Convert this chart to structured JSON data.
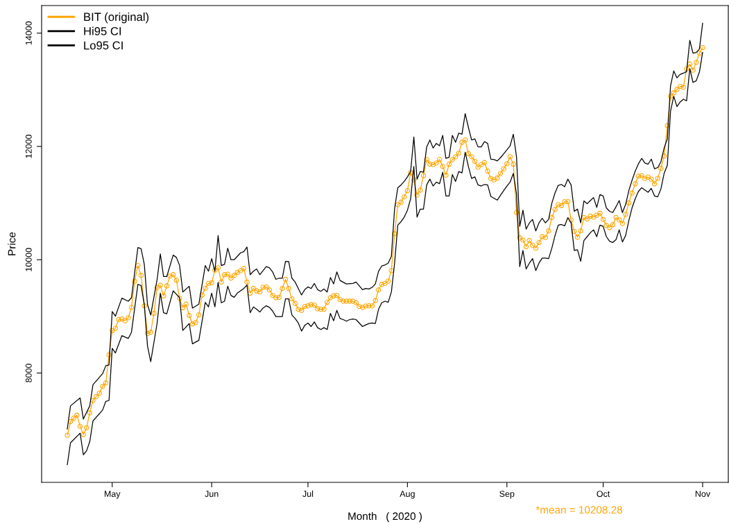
{
  "chart_data": {
    "type": "line",
    "xlabel": "Month   ( 2020 )",
    "ylabel": "Price",
    "annotations": [
      "*mean = 10208.28"
    ],
    "xlim": [
      "2020-04-09",
      "2020-11-09"
    ],
    "ylim": [
      6070,
      14487
    ],
    "xticks": [
      {
        "value": "2020-05-01",
        "label": "May"
      },
      {
        "value": "2020-06-01",
        "label": "Jun"
      },
      {
        "value": "2020-07-01",
        "label": "Jul"
      },
      {
        "value": "2020-08-01",
        "label": "Aug"
      },
      {
        "value": "2020-09-01",
        "label": "Sep"
      },
      {
        "value": "2020-10-01",
        "label": "Oct"
      },
      {
        "value": "2020-11-01",
        "label": "Nov"
      }
    ],
    "yticks": [
      8000,
      10000,
      12000,
      14000
    ],
    "grid": false,
    "legend": "top left",
    "x": [
      "2020-04-17",
      "2020-04-18",
      "2020-04-19",
      "2020-04-20",
      "2020-04-21",
      "2020-04-22",
      "2020-04-23",
      "2020-04-24",
      "2020-04-25",
      "2020-04-26",
      "2020-04-27",
      "2020-04-28",
      "2020-04-29",
      "2020-04-30",
      "2020-05-01",
      "2020-05-02",
      "2020-05-03",
      "2020-05-04",
      "2020-05-05",
      "2020-05-06",
      "2020-05-07",
      "2020-05-08",
      "2020-05-09",
      "2020-05-10",
      "2020-05-11",
      "2020-05-12",
      "2020-05-13",
      "2020-05-14",
      "2020-05-15",
      "2020-05-16",
      "2020-05-17",
      "2020-05-18",
      "2020-05-19",
      "2020-05-20",
      "2020-05-21",
      "2020-05-22",
      "2020-05-23",
      "2020-05-24",
      "2020-05-25",
      "2020-05-26",
      "2020-05-27",
      "2020-05-28",
      "2020-05-29",
      "2020-05-30",
      "2020-05-31",
      "2020-06-01",
      "2020-06-02",
      "2020-06-03",
      "2020-06-04",
      "2020-06-05",
      "2020-06-06",
      "2020-06-07",
      "2020-06-08",
      "2020-06-09",
      "2020-06-10",
      "2020-06-11",
      "2020-06-12",
      "2020-06-13",
      "2020-06-14",
      "2020-06-15",
      "2020-06-16",
      "2020-06-17",
      "2020-06-18",
      "2020-06-19",
      "2020-06-20",
      "2020-06-21",
      "2020-06-22",
      "2020-06-23",
      "2020-06-24",
      "2020-06-25",
      "2020-06-26",
      "2020-06-27",
      "2020-06-28",
      "2020-06-29",
      "2020-06-30",
      "2020-07-01",
      "2020-07-02",
      "2020-07-03",
      "2020-07-04",
      "2020-07-05",
      "2020-07-06",
      "2020-07-07",
      "2020-07-08",
      "2020-07-09",
      "2020-07-10",
      "2020-07-11",
      "2020-07-12",
      "2020-07-13",
      "2020-07-14",
      "2020-07-15",
      "2020-07-16",
      "2020-07-17",
      "2020-07-18",
      "2020-07-19",
      "2020-07-20",
      "2020-07-21",
      "2020-07-22",
      "2020-07-23",
      "2020-07-24",
      "2020-07-25",
      "2020-07-26",
      "2020-07-27",
      "2020-07-28",
      "2020-07-29",
      "2020-07-30",
      "2020-07-31",
      "2020-08-01",
      "2020-08-02",
      "2020-08-03",
      "2020-08-04",
      "2020-08-05",
      "2020-08-06",
      "2020-08-07",
      "2020-08-08",
      "2020-08-09",
      "2020-08-10",
      "2020-08-11",
      "2020-08-12",
      "2020-08-13",
      "2020-08-14",
      "2020-08-15",
      "2020-08-16",
      "2020-08-17",
      "2020-08-18",
      "2020-08-19",
      "2020-08-20",
      "2020-08-21",
      "2020-08-22",
      "2020-08-23",
      "2020-08-24",
      "2020-08-25",
      "2020-08-26",
      "2020-08-27",
      "2020-08-28",
      "2020-08-29",
      "2020-08-30",
      "2020-08-31",
      "2020-09-01",
      "2020-09-02",
      "2020-09-03",
      "2020-09-04",
      "2020-09-05",
      "2020-09-06",
      "2020-09-07",
      "2020-09-08",
      "2020-09-09",
      "2020-09-10",
      "2020-09-11",
      "2020-09-12",
      "2020-09-13",
      "2020-09-14",
      "2020-09-15",
      "2020-09-16",
      "2020-09-17",
      "2020-09-18",
      "2020-09-19",
      "2020-09-20",
      "2020-09-21",
      "2020-09-22",
      "2020-09-23",
      "2020-09-24",
      "2020-09-25",
      "2020-09-26",
      "2020-09-27",
      "2020-09-28",
      "2020-09-29",
      "2020-09-30",
      "2020-10-01",
      "2020-10-02",
      "2020-10-03",
      "2020-10-04",
      "2020-10-05",
      "2020-10-06",
      "2020-10-07",
      "2020-10-08",
      "2020-10-09",
      "2020-10-10",
      "2020-10-11",
      "2020-10-12",
      "2020-10-13",
      "2020-10-14",
      "2020-10-15",
      "2020-10-16",
      "2020-10-17",
      "2020-10-18",
      "2020-10-19",
      "2020-10-20",
      "2020-10-21",
      "2020-10-22",
      "2020-10-23",
      "2020-10-24",
      "2020-10-25",
      "2020-10-26",
      "2020-10-27",
      "2020-10-28",
      "2020-10-29",
      "2020-10-30",
      "2020-10-31",
      "2020-11-01"
    ],
    "series": [
      {
        "name": "BIT (original)",
        "color": "#ffa500",
        "marker": "circle",
        "values": [
          6902,
          7142,
          7203,
          7256,
          7061,
          6915,
          7033,
          7297,
          7516,
          7585,
          7646,
          7764,
          7825,
          8321,
          8748,
          8789,
          8943,
          8955,
          8923,
          8976,
          9159,
          9622,
          9898,
          9724,
          9187,
          8699,
          8720,
          9053,
          9512,
          9549,
          9362,
          9537,
          9711,
          9736,
          9638,
          9321,
          9154,
          9215,
          9016,
          8866,
          8890,
          9028,
          9378,
          9496,
          9581,
          9593,
          9817,
          9858,
          9606,
          9736,
          9744,
          9675,
          9724,
          9776,
          9809,
          9846,
          9606,
          9411,
          9492,
          9451,
          9431,
          9512,
          9520,
          9467,
          9370,
          9329,
          9337,
          9492,
          9654,
          9492,
          9309,
          9228,
          9126,
          9106,
          9175,
          9187,
          9207,
          9199,
          9134,
          9126,
          9126,
          9248,
          9329,
          9362,
          9370,
          9297,
          9268,
          9268,
          9268,
          9268,
          9240,
          9175,
          9159,
          9183,
          9187,
          9187,
          9280,
          9467,
          9565,
          9581,
          9622,
          9809,
          10459,
          10972,
          11016,
          11110,
          11220,
          11537,
          11411,
          11142,
          11228,
          11484,
          11768,
          11687,
          11679,
          11707,
          11768,
          11646,
          11492,
          11687,
          11768,
          11817,
          11882,
          12073,
          12114,
          11874,
          11817,
          11736,
          11634,
          11679,
          11715,
          11565,
          11435,
          11411,
          11443,
          11524,
          11606,
          11695,
          11817,
          11687,
          10833,
          10386,
          10346,
          10232,
          10337,
          10256,
          10203,
          10305,
          10407,
          10394,
          10508,
          10744,
          10890,
          10972,
          10955,
          11024,
          11024,
          10703,
          10500,
          10398,
          10508,
          10744,
          10720,
          10768,
          10752,
          10785,
          10821,
          10711,
          10606,
          10569,
          10618,
          10744,
          10703,
          10642,
          10801,
          11004,
          11179,
          11341,
          11476,
          11484,
          11435,
          11459,
          11423,
          11341,
          11435,
          11614,
          11829,
          12370,
          12886,
          12947,
          13008,
          13061,
          13045,
          13370,
          13455,
          13346,
          13484,
          13646,
          13744
        ]
      },
      {
        "name": "Hi95 CI",
        "color": "#000000",
        "x": [
          "2020-04-17",
          "2020-04-18",
          "2020-04-21",
          "2020-04-22",
          "2020-04-24",
          "2020-04-25",
          "2020-04-28",
          "2020-04-29",
          "2020-04-30",
          "2020-05-01",
          "2020-05-02",
          "2020-05-04",
          "2020-05-06",
          "2020-05-07",
          "2020-05-09",
          "2020-05-10",
          "2020-05-11",
          "2020-05-12",
          "2020-05-13",
          "2020-05-15",
          "2020-05-16",
          "2020-05-17",
          "2020-05-18",
          "2020-05-20",
          "2020-05-21",
          "2020-05-22",
          "2020-05-23",
          "2020-05-25",
          "2020-05-26",
          "2020-05-28",
          "2020-05-30",
          "2020-05-31",
          "2020-06-01",
          "2020-06-02",
          "2020-06-03",
          "2020-06-04",
          "2020-06-05",
          "2020-06-06",
          "2020-06-07",
          "2020-06-08",
          "2020-06-10",
          "2020-06-11",
          "2020-06-12",
          "2020-06-13",
          "2020-06-14",
          "2020-06-15",
          "2020-06-16",
          "2020-06-18",
          "2020-06-19",
          "2020-06-20",
          "2020-06-21",
          "2020-06-22",
          "2020-06-23",
          "2020-06-24",
          "2020-06-25",
          "2020-06-26",
          "2020-06-27",
          "2020-06-28",
          "2020-06-29",
          "2020-06-30",
          "2020-07-01",
          "2020-07-02",
          "2020-07-03",
          "2020-07-04",
          "2020-07-05",
          "2020-07-06",
          "2020-07-07",
          "2020-07-08",
          "2020-07-09",
          "2020-07-10",
          "2020-07-11",
          "2020-07-13",
          "2020-07-15",
          "2020-07-16",
          "2020-07-18",
          "2020-07-19",
          "2020-07-20",
          "2020-07-21",
          "2020-07-22",
          "2020-07-23",
          "2020-07-24",
          "2020-07-25",
          "2020-07-26",
          "2020-07-27",
          "2020-07-28",
          "2020-07-29",
          "2020-07-30",
          "2020-07-31",
          "2020-08-01",
          "2020-08-02",
          "2020-08-03",
          "2020-08-04",
          "2020-08-05",
          "2020-08-06",
          "2020-08-07",
          "2020-08-08",
          "2020-08-09",
          "2020-08-10",
          "2020-08-11",
          "2020-08-12",
          "2020-08-13",
          "2020-08-14",
          "2020-08-15",
          "2020-08-16",
          "2020-08-17",
          "2020-08-18",
          "2020-08-19",
          "2020-08-20",
          "2020-08-21",
          "2020-08-22",
          "2020-08-23",
          "2020-08-24",
          "2020-08-25",
          "2020-08-26",
          "2020-08-27",
          "2020-08-28",
          "2020-08-29",
          "2020-08-30",
          "2020-08-31",
          "2020-09-01",
          "2020-09-02",
          "2020-09-03",
          "2020-09-04",
          "2020-09-05",
          "2020-09-06",
          "2020-09-07",
          "2020-09-08",
          "2020-09-09",
          "2020-09-10",
          "2020-09-11",
          "2020-09-12",
          "2020-09-13",
          "2020-09-14",
          "2020-09-15",
          "2020-09-16",
          "2020-09-17",
          "2020-09-18",
          "2020-09-19",
          "2020-09-20",
          "2020-09-21",
          "2020-09-22",
          "2020-09-23",
          "2020-09-24",
          "2020-09-25",
          "2020-09-26",
          "2020-09-27",
          "2020-09-28",
          "2020-09-29",
          "2020-09-30",
          "2020-10-01",
          "2020-10-02",
          "2020-10-03",
          "2020-10-04",
          "2020-10-05",
          "2020-10-06",
          "2020-10-07",
          "2020-10-08",
          "2020-10-09",
          "2020-10-10",
          "2020-10-11",
          "2020-10-12",
          "2020-10-13",
          "2020-10-14",
          "2020-10-15",
          "2020-10-16",
          "2020-10-17",
          "2020-10-18",
          "2020-10-19",
          "2020-10-20",
          "2020-10-21",
          "2020-10-22",
          "2020-10-23",
          "2020-10-24",
          "2020-10-25",
          "2020-10-26",
          "2020-10-27",
          "2020-10-28",
          "2020-10-29",
          "2020-10-30",
          "2020-10-31",
          "2020-11-01"
        ],
        "values": [
          7012,
          7419,
          7561,
          7187,
          7419,
          7793,
          7988,
          8130,
          8142,
          9085,
          9004,
          9321,
          9268,
          9329,
          10215,
          10195,
          9919,
          9207,
          9024,
          9654,
          10102,
          9703,
          9703,
          10081,
          10041,
          9898,
          9431,
          9533,
          9146,
          9215,
          9898,
          9797,
          10020,
          9797,
          10427,
          9898,
          9919,
          10203,
          10000,
          10000,
          10122,
          10142,
          10224,
          9736,
          9797,
          9837,
          9736,
          9878,
          9858,
          9785,
          9654,
          9675,
          9675,
          9972,
          9968,
          9675,
          9606,
          9492,
          9378,
          9472,
          9520,
          9492,
          9581,
          9472,
          9443,
          9484,
          9431,
          9687,
          9573,
          9785,
          9634,
          9573,
          9581,
          9606,
          9472,
          9492,
          9484,
          9512,
          9573,
          9797,
          9890,
          9907,
          9939,
          10061,
          10900,
          11272,
          11321,
          11382,
          11463,
          11557,
          12167,
          11423,
          11557,
          11545,
          11992,
          12114,
          11972,
          12053,
          12012,
          12195,
          11789,
          11809,
          12195,
          12073,
          12236,
          12215,
          12581,
          12337,
          12114,
          12134,
          11992,
          11992,
          12085,
          12053,
          11776,
          11768,
          11744,
          11801,
          11870,
          11939,
          12012,
          12215,
          11817,
          10589,
          10874,
          10541,
          10650,
          10711,
          10508,
          10650,
          10732,
          10650,
          10711,
          10996,
          11179,
          11313,
          11329,
          11289,
          11423,
          11321,
          10854,
          10894,
          10650,
          11037,
          10988,
          11045,
          11098,
          10923,
          11150,
          11126,
          10915,
          10854,
          10833,
          10935,
          11045,
          10833,
          10976,
          11220,
          11402,
          11565,
          11695,
          11789,
          11707,
          11687,
          11776,
          11606,
          11626,
          11728,
          11972,
          12134,
          13069,
          13333,
          13211,
          13272,
          13293,
          13321,
          13874,
          13646,
          13659,
          13720,
          14175
        ]
      },
      {
        "name": "Lo95 CI",
        "color": "#000000",
        "x": [
          "2020-04-17",
          "2020-04-18",
          "2020-04-21",
          "2020-04-22",
          "2020-04-23",
          "2020-04-24",
          "2020-04-25",
          "2020-04-28",
          "2020-04-29",
          "2020-04-30",
          "2020-05-01",
          "2020-05-02",
          "2020-05-04",
          "2020-05-06",
          "2020-05-07",
          "2020-05-09",
          "2020-05-10",
          "2020-05-11",
          "2020-05-12",
          "2020-05-13",
          "2020-05-15",
          "2020-05-16",
          "2020-05-17",
          "2020-05-18",
          "2020-05-20",
          "2020-05-22",
          "2020-05-23",
          "2020-05-25",
          "2020-05-26",
          "2020-05-28",
          "2020-05-30",
          "2020-05-31",
          "2020-06-01",
          "2020-06-02",
          "2020-06-03",
          "2020-06-04",
          "2020-06-05",
          "2020-06-06",
          "2020-06-07",
          "2020-06-08",
          "2020-06-09",
          "2020-06-10",
          "2020-06-11",
          "2020-06-12",
          "2020-06-13",
          "2020-06-14",
          "2020-06-15",
          "2020-06-16",
          "2020-06-17",
          "2020-06-18",
          "2020-06-19",
          "2020-06-20",
          "2020-06-21",
          "2020-06-22",
          "2020-06-23",
          "2020-06-24",
          "2020-06-25",
          "2020-06-26",
          "2020-06-27",
          "2020-06-28",
          "2020-06-29",
          "2020-06-30",
          "2020-07-01",
          "2020-07-02",
          "2020-07-03",
          "2020-07-04",
          "2020-07-05",
          "2020-07-06",
          "2020-07-07",
          "2020-07-08",
          "2020-07-09",
          "2020-07-10",
          "2020-07-11",
          "2020-07-12",
          "2020-07-13",
          "2020-07-14",
          "2020-07-15",
          "2020-07-16",
          "2020-07-17",
          "2020-07-18",
          "2020-07-19",
          "2020-07-20",
          "2020-07-21",
          "2020-07-22",
          "2020-07-23",
          "2020-07-24",
          "2020-07-25",
          "2020-07-26",
          "2020-07-27",
          "2020-07-28",
          "2020-07-29",
          "2020-07-30",
          "2020-07-31",
          "2020-08-01",
          "2020-08-02",
          "2020-08-03",
          "2020-08-04",
          "2020-08-05",
          "2020-08-06",
          "2020-08-07",
          "2020-08-08",
          "2020-08-09",
          "2020-08-10",
          "2020-08-11",
          "2020-08-12",
          "2020-08-13",
          "2020-08-14",
          "2020-08-15",
          "2020-08-16",
          "2020-08-17",
          "2020-08-18",
          "2020-08-19",
          "2020-08-20",
          "2020-08-21",
          "2020-08-22",
          "2020-08-23",
          "2020-08-24",
          "2020-08-25",
          "2020-08-26",
          "2020-08-27",
          "2020-08-28",
          "2020-08-29",
          "2020-08-30",
          "2020-08-31",
          "2020-09-01",
          "2020-09-02",
          "2020-09-03",
          "2020-09-04",
          "2020-09-05",
          "2020-09-06",
          "2020-09-07",
          "2020-09-08",
          "2020-09-09",
          "2020-09-10",
          "2020-09-11",
          "2020-09-12",
          "2020-09-13",
          "2020-09-14",
          "2020-09-15",
          "2020-09-16",
          "2020-09-17",
          "2020-09-18",
          "2020-09-19",
          "2020-09-20",
          "2020-09-21",
          "2020-09-22",
          "2020-09-23",
          "2020-09-24",
          "2020-09-25",
          "2020-09-26",
          "2020-09-27",
          "2020-09-28",
          "2020-09-29",
          "2020-09-30",
          "2020-10-01",
          "2020-10-02",
          "2020-10-03",
          "2020-10-04",
          "2020-10-05",
          "2020-10-06",
          "2020-10-07",
          "2020-10-08",
          "2020-10-09",
          "2020-10-10",
          "2020-10-11",
          "2020-10-12",
          "2020-10-13",
          "2020-10-14",
          "2020-10-15",
          "2020-10-16",
          "2020-10-17",
          "2020-10-18",
          "2020-10-19",
          "2020-10-20",
          "2020-10-21",
          "2020-10-22",
          "2020-10-23",
          "2020-10-24",
          "2020-10-25",
          "2020-10-26",
          "2020-10-27",
          "2020-10-28",
          "2020-10-29",
          "2020-10-30",
          "2020-10-31",
          "2020-11-01"
        ],
        "values": [
          6382,
          6768,
          6939,
          6557,
          6626,
          6789,
          7154,
          7346,
          7500,
          7516,
          8435,
          8354,
          8659,
          8610,
          8720,
          9565,
          9545,
          9207,
          8476,
          8199,
          8882,
          9411,
          9065,
          9045,
          9451,
          9329,
          8752,
          8874,
          8516,
          8577,
          9248,
          9167,
          9411,
          9167,
          9600,
          9240,
          9268,
          9533,
          9370,
          9337,
          9411,
          9451,
          9492,
          9553,
          9065,
          9167,
          9126,
          9077,
          9146,
          9187,
          9159,
          9093,
          8996,
          8996,
          8996,
          9309,
          9309,
          9024,
          8963,
          8882,
          8740,
          8841,
          8882,
          8821,
          8902,
          8801,
          8768,
          8801,
          8768,
          9053,
          8923,
          9106,
          8963,
          8943,
          8915,
          8943,
          8955,
          8943,
          8882,
          8821,
          8850,
          8874,
          8882,
          8874,
          9126,
          9240,
          9268,
          9248,
          9431,
          9939,
          10610,
          10671,
          10752,
          10874,
          11077,
          11646,
          10752,
          10894,
          10894,
          11321,
          11423,
          11301,
          11370,
          11341,
          11545,
          11126,
          11126,
          11504,
          11382,
          11557,
          11533,
          11898,
          11646,
          11435,
          11463,
          11321,
          11301,
          11329,
          11321,
          11118,
          11085,
          11053,
          11138,
          11220,
          11301,
          11370,
          11524,
          11159,
          9878,
          10163,
          9837,
          9939,
          10020,
          9809,
          9939,
          10028,
          10028,
          10020,
          10203,
          10427,
          10610,
          10622,
          10598,
          10744,
          10650,
          10163,
          10175,
          9972,
          10337,
          10407,
          10476,
          10528,
          10407,
          10610,
          10589,
          10407,
          10325,
          10305,
          10354,
          10528,
          10313,
          10427,
          10691,
          10915,
          11077,
          11207,
          11272,
          11232,
          11191,
          11260,
          11126,
          11110,
          11250,
          11524,
          11667,
          12622,
          12886,
          12703,
          12785,
          12833,
          12805,
          13374,
          13130,
          13159,
          13313,
          13659
        ]
      }
    ]
  }
}
